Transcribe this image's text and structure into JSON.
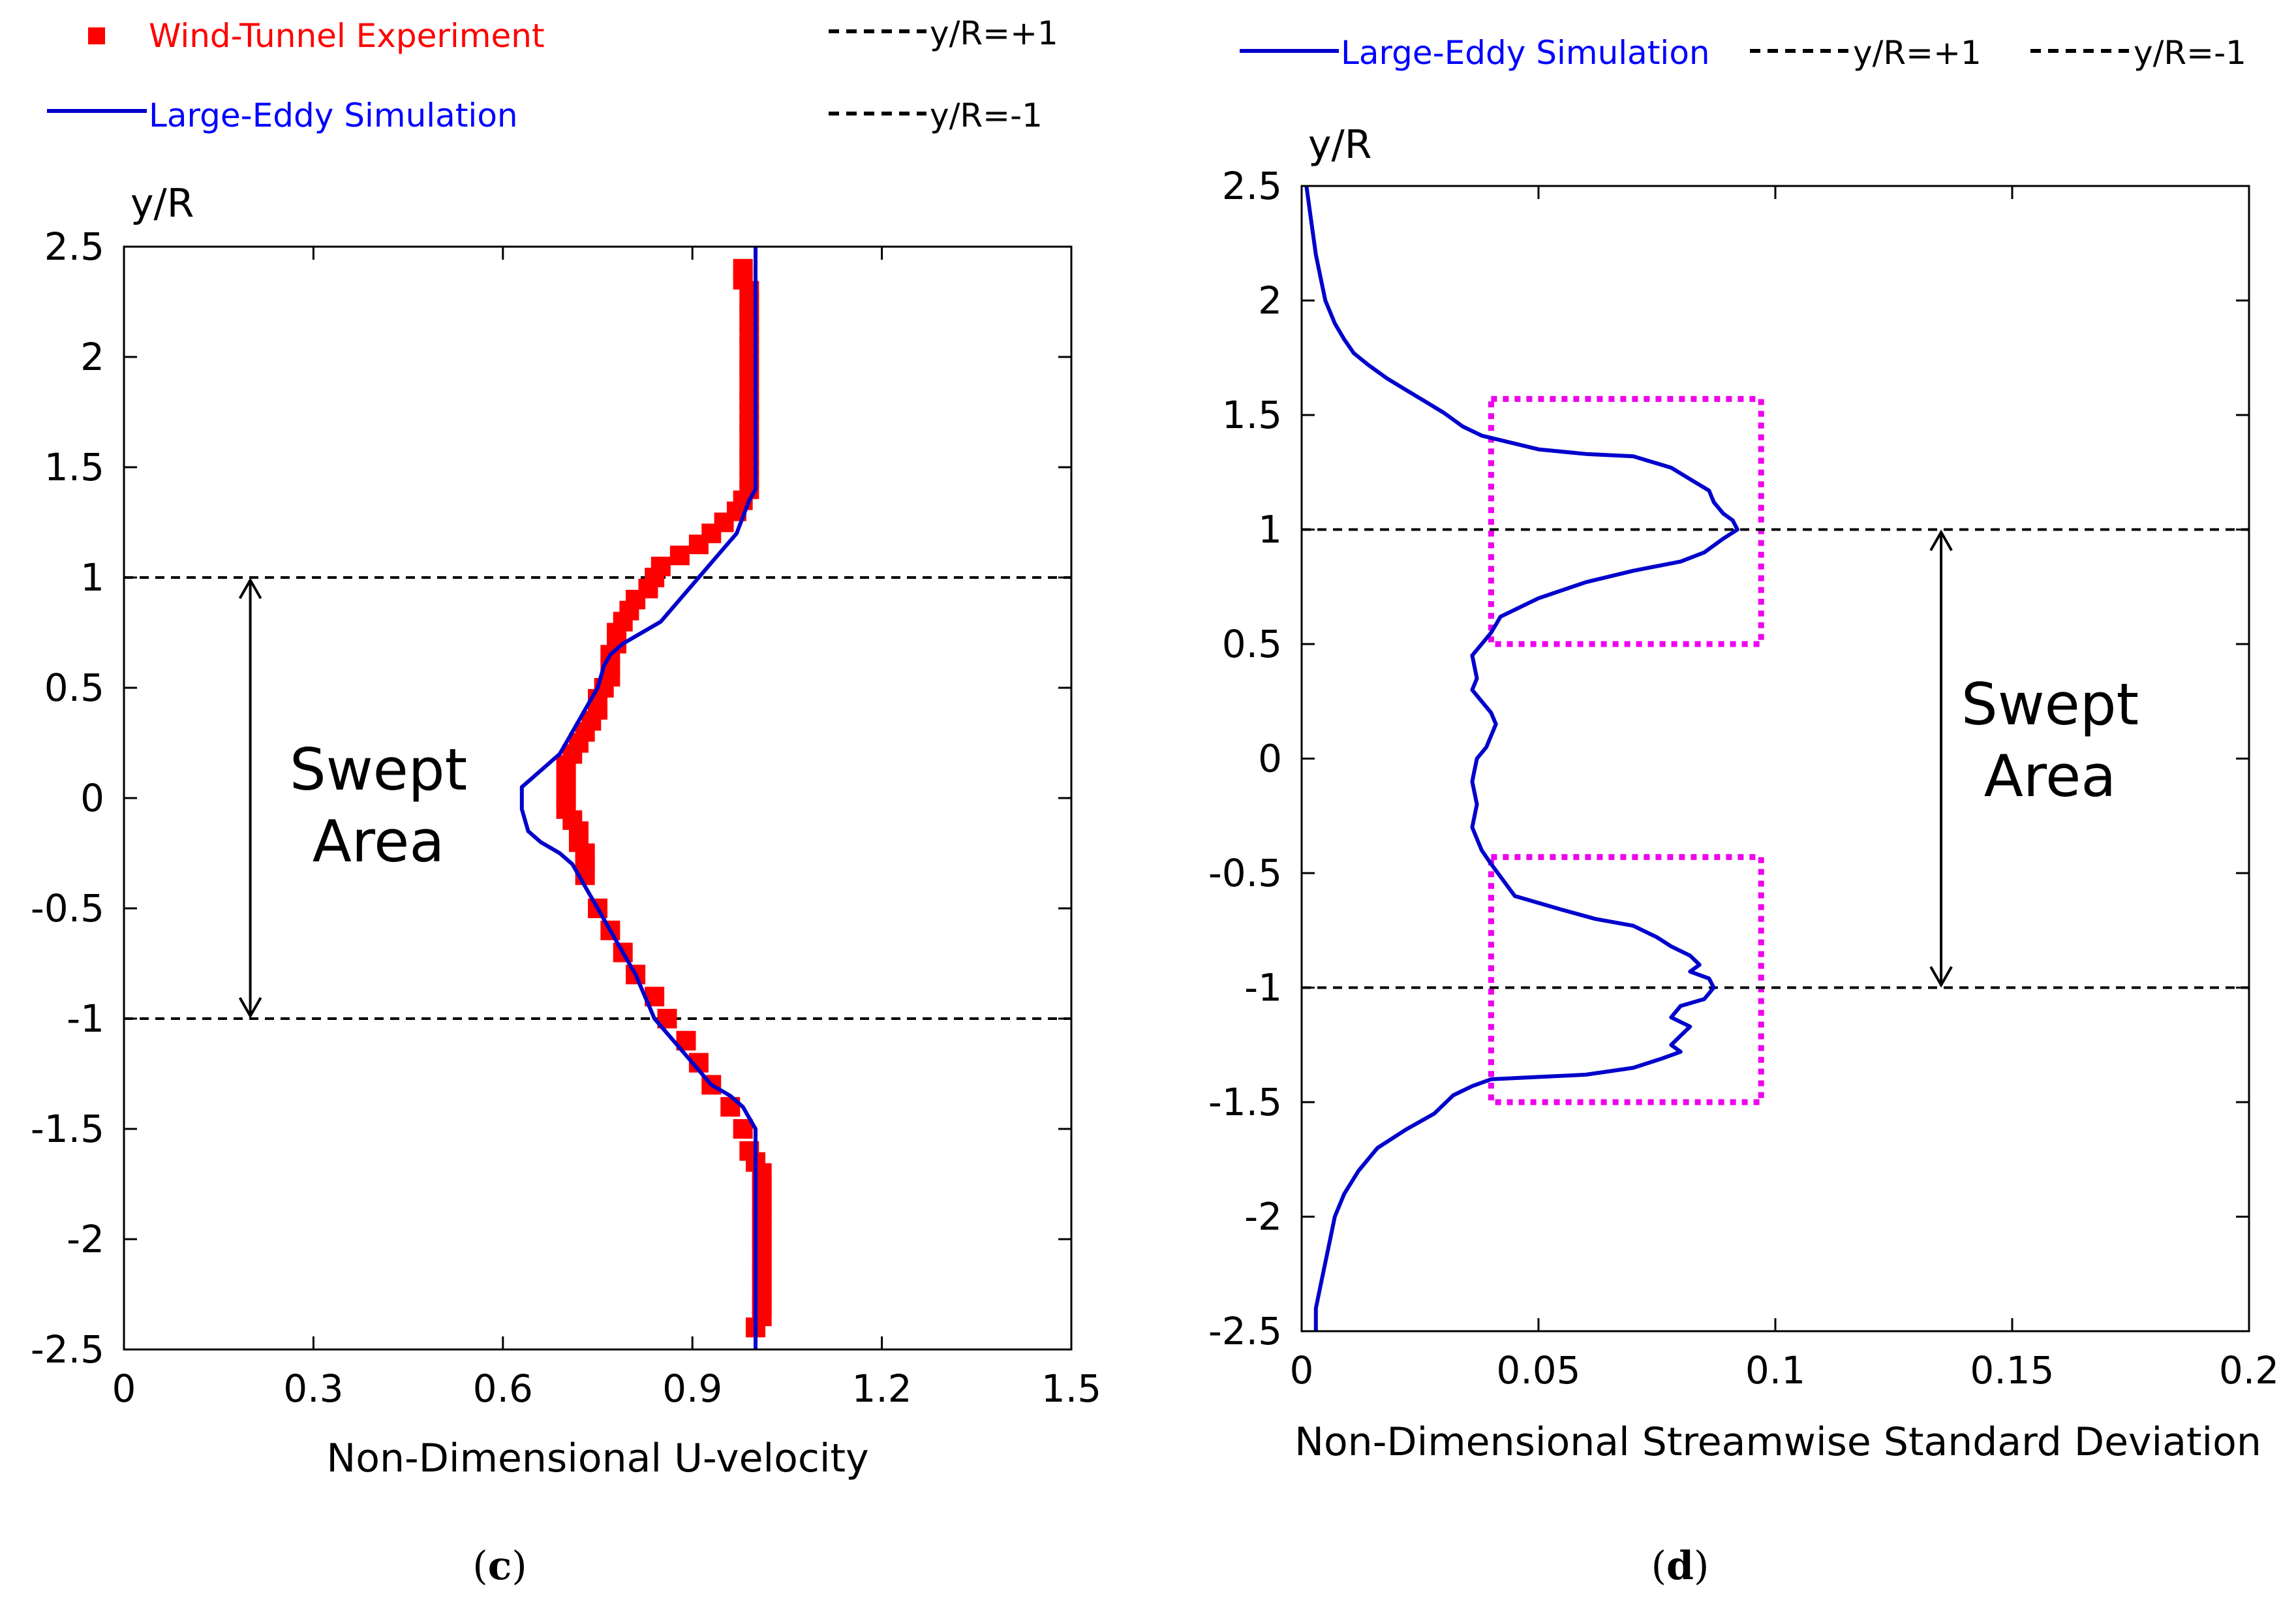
{
  "chart_data": [
    {
      "type": "line",
      "panel": "c",
      "caption_open": "(",
      "caption_letter": "c",
      "caption_close": ")",
      "xlabel": "Non-Dimensional U-velocity",
      "ylabel": "y/R",
      "xlim": [
        0,
        1.5
      ],
      "ylim": [
        -2.5,
        2.5
      ],
      "xticks": [
        "0",
        "0.3",
        "0.6",
        "0.9",
        "1.2",
        "1.5"
      ],
      "xtick_values": [
        0,
        0.3,
        0.6,
        0.9,
        1.2,
        1.5
      ],
      "yticks": [
        "2.5",
        "2",
        "1.5",
        "1",
        "0.5",
        "0",
        "-0.5",
        "-1",
        "-1.5",
        "-2",
        "-2.5"
      ],
      "ytick_values": [
        2.5,
        2,
        1.5,
        1,
        0.5,
        0,
        -0.5,
        -1,
        -1.5,
        -2,
        -2.5
      ],
      "legend": {
        "experiment": "Wind-Tunnel Experiment",
        "les": "Large-Eddy Simulation",
        "upper": "y/R=+1",
        "lower": "y/R=-1"
      },
      "annotation": {
        "line1": "Swept",
        "line2": "Area",
        "arrow_from": 1,
        "arrow_to": -1,
        "arrow_x": 0.2
      },
      "colors": {
        "experiment": "#ff0000",
        "les": "#0000cc",
        "ref": "#000000",
        "legend_exp_text": "#ff0000",
        "legend_les_text": "#0000ff"
      },
      "series": [
        {
          "name": "Wind-Tunnel Experiment",
          "style": "markers",
          "x": [
            0.98,
            0.98,
            0.99,
            0.99,
            0.99,
            0.99,
            0.99,
            0.99,
            0.99,
            0.99,
            0.99,
            0.99,
            0.99,
            0.99,
            0.99,
            0.99,
            0.99,
            0.99,
            0.99,
            0.99,
            0.99,
            0.98,
            0.97,
            0.95,
            0.93,
            0.91,
            0.88,
            0.85,
            0.84,
            0.83,
            0.81,
            0.8,
            0.79,
            0.78,
            0.78,
            0.77,
            0.77,
            0.77,
            0.76,
            0.75,
            0.75,
            0.74,
            0.73,
            0.72,
            0.71,
            0.7,
            0.7,
            0.7,
            0.7,
            0.7,
            0.71,
            0.72,
            0.72,
            0.73,
            0.73,
            0.73,
            0.75,
            0.77,
            0.79,
            0.81,
            0.84,
            0.86,
            0.89,
            0.91,
            0.93,
            0.96,
            0.98,
            0.99,
            1.0,
            1.01,
            1.01,
            1.01,
            1.01,
            1.01,
            1.01,
            1.01,
            1.01,
            1.01,
            1.01,
            1.01,
            1.01,
            1.01,
            1.01,
            1.0,
            1.0,
            1.0,
            1.0
          ],
          "y": [
            2.4,
            2.35,
            2.3,
            2.25,
            2.2,
            2.15,
            2.1,
            2.05,
            2.0,
            1.95,
            1.9,
            1.85,
            1.8,
            1.75,
            1.7,
            1.65,
            1.6,
            1.55,
            1.5,
            1.45,
            1.4,
            1.35,
            1.3,
            1.25,
            1.2,
            1.15,
            1.1,
            1.05,
            1.0,
            0.95,
            0.9,
            0.85,
            0.8,
            0.75,
            0.7,
            0.65,
            0.6,
            0.55,
            0.5,
            0.45,
            0.4,
            0.35,
            0.3,
            0.25,
            0.2,
            0.15,
            0.1,
            0.05,
            0.0,
            -0.05,
            -0.1,
            -0.15,
            -0.2,
            -0.25,
            -0.3,
            -0.35,
            -0.5,
            -0.6,
            -0.7,
            -0.8,
            -0.9,
            -1.0,
            -1.1,
            -1.2,
            -1.3,
            -1.4,
            -1.5,
            -1.6,
            -1.65,
            -1.7,
            -1.75,
            -1.8,
            -1.85,
            -1.9,
            -1.95,
            -2.0,
            -2.05,
            -2.1,
            -2.15,
            -2.2,
            -2.25,
            -2.3,
            -2.35,
            -2.4,
            -2.4,
            -2.4,
            -2.4
          ]
        },
        {
          "name": "Large-Eddy Simulation",
          "style": "line",
          "x": [
            1.0,
            1.0,
            1.0,
            1.0,
            0.99,
            0.97,
            0.94,
            0.91,
            0.88,
            0.85,
            0.82,
            0.79,
            0.77,
            0.76,
            0.75,
            0.73,
            0.71,
            0.69,
            0.67,
            0.65,
            0.63,
            0.63,
            0.64,
            0.66,
            0.69,
            0.71,
            0.72,
            0.73,
            0.75,
            0.78,
            0.81,
            0.84,
            0.87,
            0.9,
            0.93,
            0.96,
            0.98,
            0.99,
            1.0,
            1.0,
            1.0,
            1.0
          ],
          "y": [
            2.5,
            2.0,
            1.5,
            1.4,
            1.35,
            1.2,
            1.1,
            1.0,
            0.9,
            0.8,
            0.75,
            0.7,
            0.65,
            0.6,
            0.5,
            0.4,
            0.3,
            0.2,
            0.15,
            0.1,
            0.05,
            -0.05,
            -0.15,
            -0.2,
            -0.25,
            -0.3,
            -0.35,
            -0.4,
            -0.5,
            -0.65,
            -0.8,
            -1.0,
            -1.1,
            -1.2,
            -1.3,
            -1.35,
            -1.4,
            -1.45,
            -1.5,
            -2.0,
            -2.4,
            -2.5
          ]
        }
      ]
    },
    {
      "type": "line",
      "panel": "d",
      "caption_open": "(",
      "caption_letter": "d",
      "caption_close": ")",
      "xlabel": "Non-Dimensional Streamwise Standard Deviation",
      "ylabel": "y/R",
      "xlim": [
        0,
        0.2
      ],
      "ylim": [
        -2.5,
        2.5
      ],
      "xticks": [
        "0",
        "0.05",
        "0.1",
        "0.15",
        "0.2"
      ],
      "xtick_values": [
        0,
        0.05,
        0.1,
        0.15,
        0.2
      ],
      "yticks": [
        "2.5",
        "2",
        "1.5",
        "1",
        "0.5",
        "0",
        "-0.5",
        "-1",
        "-1.5",
        "-2",
        "-2.5"
      ],
      "ytick_values": [
        2.5,
        2,
        1.5,
        1,
        0.5,
        0,
        -0.5,
        -1,
        -1.5,
        -2,
        -2.5
      ],
      "legend": {
        "les": "Large-Eddy Simulation",
        "upper": "y/R=+1",
        "lower": "y/R=-1"
      },
      "annotation": {
        "line1": "Swept",
        "line2": "Area",
        "arrow_from": 1,
        "arrow_to": -1,
        "arrow_x": 0.135
      },
      "highlight_boxes": [
        {
          "x0": 0.04,
          "x1": 0.097,
          "y0": 0.5,
          "y1": 1.57
        },
        {
          "x0": 0.04,
          "x1": 0.097,
          "y0": -1.5,
          "y1": -0.43
        }
      ],
      "colors": {
        "les": "#0000cc",
        "ref": "#000000",
        "box": "#ee00ee",
        "legend_les_text": "#0000ff"
      },
      "series": [
        {
          "name": "Large-Eddy Simulation",
          "style": "line",
          "x": [
            0.001,
            0.002,
            0.003,
            0.004,
            0.005,
            0.006,
            0.007,
            0.009,
            0.011,
            0.014,
            0.018,
            0.022,
            0.026,
            0.03,
            0.032,
            0.034,
            0.036,
            0.038,
            0.04,
            0.044,
            0.05,
            0.06,
            0.07,
            0.078,
            0.082,
            0.086,
            0.087,
            0.089,
            0.091,
            0.092,
            0.089,
            0.085,
            0.08,
            0.07,
            0.06,
            0.05,
            0.042,
            0.04,
            0.038,
            0.036,
            0.037,
            0.036,
            0.038,
            0.04,
            0.041,
            0.04,
            0.039,
            0.037,
            0.036,
            0.037,
            0.036,
            0.037,
            0.038,
            0.039,
            0.04,
            0.045,
            0.055,
            0.062,
            0.07,
            0.075,
            0.078,
            0.082,
            0.084,
            0.082,
            0.086,
            0.087,
            0.085,
            0.08,
            0.078,
            0.082,
            0.08,
            0.078,
            0.08,
            0.076,
            0.07,
            0.06,
            0.05,
            0.04,
            0.036,
            0.032,
            0.028,
            0.022,
            0.016,
            0.012,
            0.009,
            0.007,
            0.006,
            0.005,
            0.004,
            0.003,
            0.003,
            0.003
          ],
          "y": [
            2.5,
            2.35,
            2.2,
            2.1,
            2.0,
            1.95,
            1.9,
            1.83,
            1.77,
            1.72,
            1.66,
            1.61,
            1.56,
            1.51,
            1.48,
            1.45,
            1.43,
            1.41,
            1.4,
            1.38,
            1.35,
            1.33,
            1.32,
            1.27,
            1.22,
            1.17,
            1.12,
            1.07,
            1.04,
            1.0,
            0.96,
            0.9,
            0.86,
            0.82,
            0.77,
            0.7,
            0.62,
            0.55,
            0.5,
            0.45,
            0.35,
            0.3,
            0.25,
            0.2,
            0.15,
            0.1,
            0.05,
            0.0,
            -0.1,
            -0.2,
            -0.3,
            -0.35,
            -0.4,
            -0.43,
            -0.46,
            -0.6,
            -0.66,
            -0.7,
            -0.73,
            -0.78,
            -0.82,
            -0.86,
            -0.9,
            -0.93,
            -0.96,
            -1.0,
            -1.05,
            -1.08,
            -1.13,
            -1.17,
            -1.21,
            -1.25,
            -1.28,
            -1.31,
            -1.35,
            -1.38,
            -1.39,
            -1.4,
            -1.43,
            -1.47,
            -1.55,
            -1.62,
            -1.7,
            -1.8,
            -1.9,
            -2.0,
            -2.1,
            -2.2,
            -2.3,
            -2.4,
            -2.45,
            -2.5
          ]
        }
      ]
    }
  ]
}
